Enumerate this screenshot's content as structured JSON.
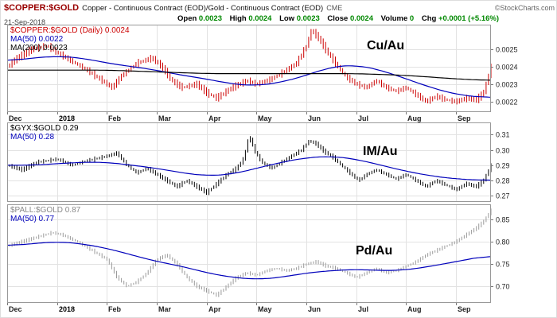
{
  "header": {
    "symbol": "$COPPER:$GOLD",
    "description": "Copper - Continuous Contract (EOD)/Gold - Continuous Contract (EOD)",
    "exchange": "CME",
    "copyright": "©StockCharts.com",
    "date": "21-Sep-2018",
    "quote": {
      "open_label": "Open",
      "open": "0.0023",
      "high_label": "High",
      "high": "0.0024",
      "low_label": "Low",
      "low": "0.0023",
      "close_label": "Close",
      "close": "0.0024",
      "volume_label": "Volume",
      "volume": "0",
      "chg_label": "Chg",
      "chg": "+0.0001 (+5.16%)"
    }
  },
  "colors": {
    "grid": "#e2e2e2",
    "panel_border": "#999999",
    "axis_text": "#222222",
    "tick": "#777777",
    "value_green": "#008800",
    "symbol_red": "#990000"
  },
  "months": [
    "Dec",
    "2018",
    "Feb",
    "Mar",
    "Apr",
    "May",
    "Jun",
    "Jul",
    "Aug",
    "Sep"
  ],
  "chart_data": [
    {
      "type": "line",
      "price_style": "ohlc-bars",
      "title": "$COPPER:$GOLD (Daily) 0.0024",
      "annotation": "Cu/Au",
      "x_unit": "month-index (0=Dec-2017, 9=Sep-2018)",
      "x_range": [
        0,
        9.7
      ],
      "x_ticks": [
        "Dec",
        "2018",
        "Feb",
        "Mar",
        "Apr",
        "May",
        "Jun",
        "Jul",
        "Aug",
        "Sep"
      ],
      "ylim": [
        0.00214,
        0.00264
      ],
      "y_ticks": [
        0.0022,
        0.0023,
        0.0024,
        0.0025
      ],
      "y_tick_labels": [
        "0.0022",
        "0.0023",
        "0.0024",
        "0.0025"
      ],
      "bar_amp": 2.2e-05,
      "legend": [
        {
          "label": "$COPPER:$GOLD (Daily) 0.0024",
          "color": "#cc0000"
        },
        {
          "label": "MA(50) 0.0022",
          "color": "#0000bb"
        },
        {
          "label": "MA(200) 0.0023",
          "color": "#000000"
        }
      ],
      "series": [
        {
          "name": "price",
          "style": "bars",
          "color": "#cc0000",
          "points": [
            [
              0,
              0.0024
            ],
            [
              0.2,
              0.00245
            ],
            [
              0.5,
              0.0025
            ],
            [
              0.8,
              0.00252
            ],
            [
              1.0,
              0.00248
            ],
            [
              1.3,
              0.00243
            ],
            [
              1.6,
              0.00238
            ],
            [
              1.9,
              0.00232
            ],
            [
              2.1,
              0.00228
            ],
            [
              2.3,
              0.00235
            ],
            [
              2.6,
              0.00242
            ],
            [
              2.9,
              0.00245
            ],
            [
              3.1,
              0.0024
            ],
            [
              3.3,
              0.00232
            ],
            [
              3.5,
              0.00228
            ],
            [
              3.8,
              0.0023
            ],
            [
              4.0,
              0.00225
            ],
            [
              4.2,
              0.00222
            ],
            [
              4.5,
              0.00228
            ],
            [
              4.8,
              0.00232
            ],
            [
              5.0,
              0.0023
            ],
            [
              5.3,
              0.00233
            ],
            [
              5.6,
              0.00238
            ],
            [
              5.8,
              0.00242
            ],
            [
              6.0,
              0.00252
            ],
            [
              6.1,
              0.00261
            ],
            [
              6.25,
              0.00256
            ],
            [
              6.4,
              0.00249
            ],
            [
              6.6,
              0.00241
            ],
            [
              6.8,
              0.00234
            ],
            [
              7.0,
              0.0023
            ],
            [
              7.2,
              0.00228
            ],
            [
              7.4,
              0.00232
            ],
            [
              7.6,
              0.00228
            ],
            [
              7.8,
              0.00226
            ],
            [
              8.0,
              0.00228
            ],
            [
              8.2,
              0.00224
            ],
            [
              8.4,
              0.0022
            ],
            [
              8.6,
              0.00223
            ],
            [
              8.8,
              0.00221
            ],
            [
              9.0,
              0.0022
            ],
            [
              9.2,
              0.00222
            ],
            [
              9.4,
              0.00221
            ],
            [
              9.55,
              0.00225
            ],
            [
              9.7,
              0.0024
            ]
          ]
        },
        {
          "name": "MA(50)",
          "style": "line",
          "color": "#0000bb",
          "points": [
            [
              0,
              0.00243
            ],
            [
              0.5,
              0.00245
            ],
            [
              1,
              0.00246
            ],
            [
              1.5,
              0.00245
            ],
            [
              2,
              0.00242
            ],
            [
              2.5,
              0.0024
            ],
            [
              3,
              0.00238
            ],
            [
              3.5,
              0.00235
            ],
            [
              4,
              0.00233
            ],
            [
              4.5,
              0.0023
            ],
            [
              5,
              0.00229
            ],
            [
              5.5,
              0.00231
            ],
            [
              6,
              0.00235
            ],
            [
              6.5,
              0.0024
            ],
            [
              7,
              0.00241
            ],
            [
              7.5,
              0.00238
            ],
            [
              8,
              0.00233
            ],
            [
              8.5,
              0.00228
            ],
            [
              9,
              0.00224
            ],
            [
              9.7,
              0.00222
            ]
          ]
        },
        {
          "name": "MA(200)",
          "style": "line",
          "color": "#000000",
          "points": [
            [
              0,
              0.00238
            ],
            [
              1,
              0.00238
            ],
            [
              2,
              0.00238
            ],
            [
              3,
              0.00237
            ],
            [
              4,
              0.00236
            ],
            [
              5,
              0.00236
            ],
            [
              6,
              0.00236
            ],
            [
              7,
              0.00236
            ],
            [
              8,
              0.00235
            ],
            [
              9,
              0.00233
            ],
            [
              9.7,
              0.00232
            ]
          ]
        }
      ]
    },
    {
      "type": "line",
      "price_style": "ohlc-bars",
      "title": "$GYX:$GOLD 0.29",
      "annotation": "IM/Au",
      "x_unit": "month-index (0=Dec-2017, 9=Sep-2018)",
      "x_range": [
        0,
        9.7
      ],
      "x_ticks": [
        "Dec",
        "2018",
        "Feb",
        "Mar",
        "Apr",
        "May",
        "Jun",
        "Jul",
        "Aug",
        "Sep"
      ],
      "ylim": [
        0.266,
        0.318
      ],
      "y_ticks": [
        0.27,
        0.28,
        0.29,
        0.3,
        0.31
      ],
      "y_tick_labels": [
        "0.27",
        "0.28",
        "0.29",
        "0.30",
        "0.31"
      ],
      "bar_amp": 0.0016,
      "legend": [
        {
          "label": "$GYX:$GOLD 0.29",
          "color": "#000000"
        },
        {
          "label": "MA(50) 0.28",
          "color": "#0000bb"
        }
      ],
      "series": [
        {
          "name": "price",
          "style": "bars",
          "color": "#000000",
          "points": [
            [
              0,
              0.29
            ],
            [
              0.3,
              0.287
            ],
            [
              0.6,
              0.292
            ],
            [
              1.0,
              0.294
            ],
            [
              1.3,
              0.29
            ],
            [
              1.6,
              0.293
            ],
            [
              2.0,
              0.296
            ],
            [
              2.2,
              0.298
            ],
            [
              2.4,
              0.29
            ],
            [
              2.6,
              0.285
            ],
            [
              2.8,
              0.288
            ],
            [
              3.0,
              0.284
            ],
            [
              3.2,
              0.28
            ],
            [
              3.4,
              0.276
            ],
            [
              3.6,
              0.28
            ],
            [
              3.8,
              0.276
            ],
            [
              4.0,
              0.272
            ],
            [
              4.2,
              0.278
            ],
            [
              4.4,
              0.284
            ],
            [
              4.6,
              0.288
            ],
            [
              4.75,
              0.295
            ],
            [
              4.85,
              0.31
            ],
            [
              4.95,
              0.3
            ],
            [
              5.1,
              0.292
            ],
            [
              5.3,
              0.288
            ],
            [
              5.5,
              0.292
            ],
            [
              5.7,
              0.296
            ],
            [
              5.9,
              0.3
            ],
            [
              6.05,
              0.306
            ],
            [
              6.2,
              0.304
            ],
            [
              6.35,
              0.299
            ],
            [
              6.5,
              0.296
            ],
            [
              6.7,
              0.29
            ],
            [
              6.9,
              0.284
            ],
            [
              7.05,
              0.28
            ],
            [
              7.2,
              0.284
            ],
            [
              7.4,
              0.287
            ],
            [
              7.6,
              0.284
            ],
            [
              7.8,
              0.281
            ],
            [
              8.0,
              0.284
            ],
            [
              8.2,
              0.28
            ],
            [
              8.4,
              0.276
            ],
            [
              8.6,
              0.28
            ],
            [
              8.8,
              0.277
            ],
            [
              9.0,
              0.274
            ],
            [
              9.2,
              0.278
            ],
            [
              9.4,
              0.276
            ],
            [
              9.55,
              0.28
            ],
            [
              9.7,
              0.29
            ]
          ]
        },
        {
          "name": "MA(50)",
          "style": "line",
          "color": "#0000bb",
          "points": [
            [
              0,
              0.29
            ],
            [
              0.5,
              0.29
            ],
            [
              1,
              0.291
            ],
            [
              1.5,
              0.292
            ],
            [
              2,
              0.292
            ],
            [
              2.5,
              0.29
            ],
            [
              3,
              0.288
            ],
            [
              3.5,
              0.285
            ],
            [
              4,
              0.283
            ],
            [
              4.5,
              0.284
            ],
            [
              5,
              0.288
            ],
            [
              5.5,
              0.292
            ],
            [
              6,
              0.295
            ],
            [
              6.5,
              0.296
            ],
            [
              7,
              0.294
            ],
            [
              7.5,
              0.29
            ],
            [
              8,
              0.286
            ],
            [
              8.5,
              0.283
            ],
            [
              9,
              0.281
            ],
            [
              9.7,
              0.28
            ]
          ]
        }
      ]
    },
    {
      "type": "line",
      "price_style": "ohlc-bars",
      "title": "$PALL:$GOLD 0.87",
      "annotation": "Pd/Au",
      "x_unit": "month-index (0=Dec-2017, 9=Sep-2018)",
      "x_range": [
        0,
        9.7
      ],
      "x_ticks": [
        "Dec",
        "2018",
        "Feb",
        "Mar",
        "Apr",
        "May",
        "Jun",
        "Jul",
        "Aug",
        "Sep"
      ],
      "ylim": [
        0.663,
        0.883
      ],
      "y_ticks": [
        0.7,
        0.75,
        0.8,
        0.85
      ],
      "y_tick_labels": [
        "0.70",
        "0.75",
        "0.80",
        "0.85"
      ],
      "bar_amp": 0.0045,
      "legend": [
        {
          "label": "$PALL:$GOLD 0.87",
          "color": "#8a8a8a"
        },
        {
          "label": "MA(50) 0.77",
          "color": "#0000bb"
        }
      ],
      "series": [
        {
          "name": "price",
          "style": "bars",
          "color": "#9a9a9a",
          "points": [
            [
              0,
              0.79
            ],
            [
              0.3,
              0.8
            ],
            [
              0.6,
              0.81
            ],
            [
              0.9,
              0.82
            ],
            [
              1.1,
              0.815
            ],
            [
              1.4,
              0.8
            ],
            [
              1.7,
              0.78
            ],
            [
              2.0,
              0.76
            ],
            [
              2.2,
              0.72
            ],
            [
              2.4,
              0.7
            ],
            [
              2.6,
              0.71
            ],
            [
              2.8,
              0.73
            ],
            [
              3.0,
              0.76
            ],
            [
              3.2,
              0.77
            ],
            [
              3.4,
              0.75
            ],
            [
              3.6,
              0.72
            ],
            [
              3.8,
              0.7
            ],
            [
              4.0,
              0.69
            ],
            [
              4.2,
              0.68
            ],
            [
              4.4,
              0.7
            ],
            [
              4.6,
              0.72
            ],
            [
              4.8,
              0.73
            ],
            [
              5.0,
              0.725
            ],
            [
              5.2,
              0.735
            ],
            [
              5.4,
              0.74
            ],
            [
              5.6,
              0.735
            ],
            [
              5.8,
              0.74
            ],
            [
              6.0,
              0.75
            ],
            [
              6.2,
              0.755
            ],
            [
              6.4,
              0.745
            ],
            [
              6.6,
              0.74
            ],
            [
              6.8,
              0.73
            ],
            [
              7.0,
              0.72
            ],
            [
              7.2,
              0.73
            ],
            [
              7.4,
              0.74
            ],
            [
              7.6,
              0.73
            ],
            [
              7.8,
              0.735
            ],
            [
              8.0,
              0.745
            ],
            [
              8.2,
              0.755
            ],
            [
              8.4,
              0.77
            ],
            [
              8.6,
              0.78
            ],
            [
              8.8,
              0.79
            ],
            [
              9.0,
              0.8
            ],
            [
              9.2,
              0.815
            ],
            [
              9.4,
              0.83
            ],
            [
              9.55,
              0.845
            ],
            [
              9.7,
              0.87
            ]
          ]
        },
        {
          "name": "MA(50)",
          "style": "line",
          "color": "#0000bb",
          "points": [
            [
              0,
              0.79
            ],
            [
              0.5,
              0.795
            ],
            [
              1,
              0.8
            ],
            [
              1.5,
              0.795
            ],
            [
              2,
              0.785
            ],
            [
              2.5,
              0.77
            ],
            [
              3,
              0.755
            ],
            [
              3.5,
              0.745
            ],
            [
              4,
              0.73
            ],
            [
              4.5,
              0.72
            ],
            [
              5,
              0.715
            ],
            [
              5.5,
              0.72
            ],
            [
              6,
              0.73
            ],
            [
              6.5,
              0.735
            ],
            [
              7,
              0.738
            ],
            [
              7.5,
              0.735
            ],
            [
              8,
              0.736
            ],
            [
              8.5,
              0.745
            ],
            [
              9,
              0.755
            ],
            [
              9.7,
              0.77
            ]
          ]
        }
      ]
    }
  ]
}
